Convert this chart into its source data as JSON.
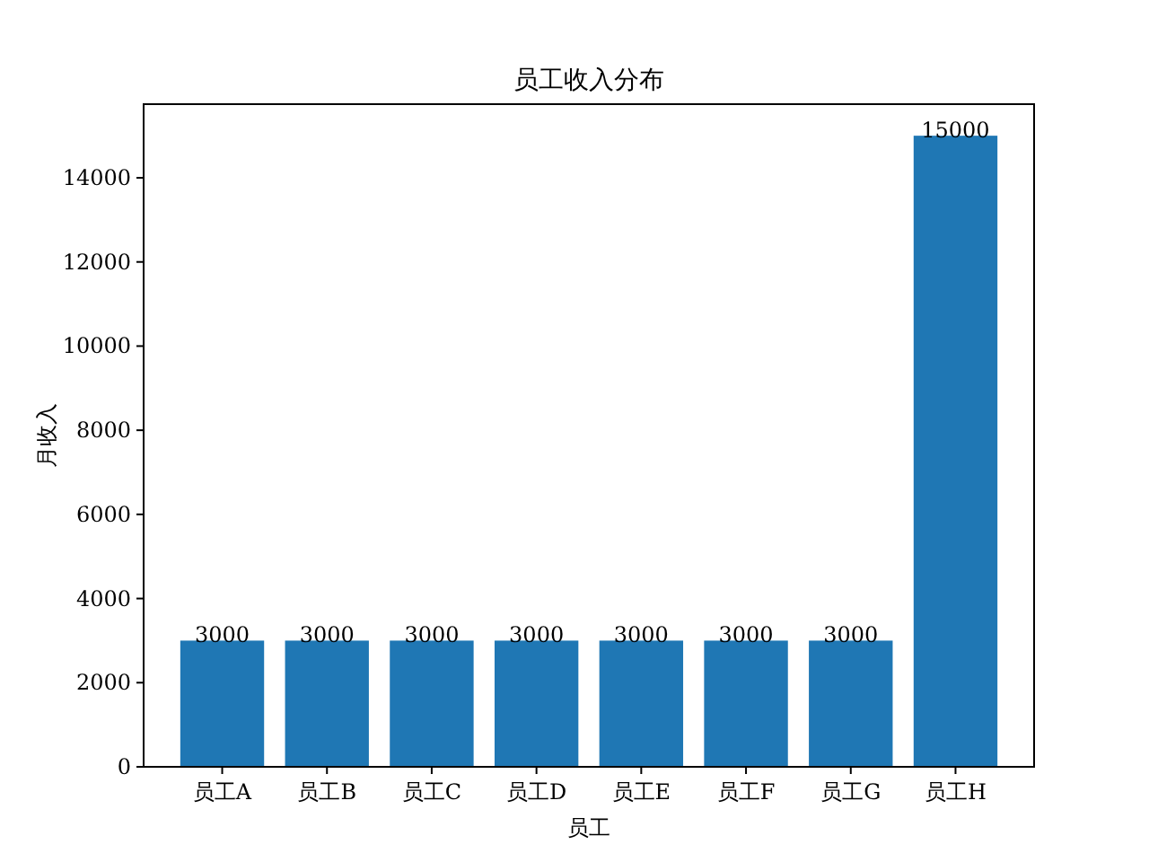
{
  "chart_data": {
    "type": "bar",
    "title": "员工收入分布",
    "xlabel": "员工",
    "ylabel": "月收入",
    "categories": [
      "员工A",
      "员工B",
      "员工C",
      "员工D",
      "员工E",
      "员工F",
      "员工G",
      "员工H"
    ],
    "values": [
      3000,
      3000,
      3000,
      3000,
      3000,
      3000,
      3000,
      15000
    ],
    "color": "#1f77b4",
    "ylim": [
      0,
      15750
    ],
    "yticks": [
      0,
      2000,
      4000,
      6000,
      8000,
      10000,
      12000,
      14000
    ],
    "data_labels": true
  }
}
